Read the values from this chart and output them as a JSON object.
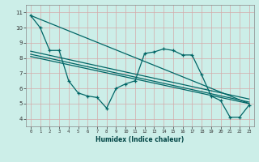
{
  "xlabel": "Humidex (Indice chaleur)",
  "background_color": "#cceee8",
  "grid_color": "#d4aaaa",
  "line_color": "#006666",
  "xlim": [
    -0.5,
    23.5
  ],
  "ylim": [
    3.5,
    11.5
  ],
  "xticks": [
    0,
    1,
    2,
    3,
    4,
    5,
    6,
    7,
    8,
    9,
    10,
    11,
    12,
    13,
    14,
    15,
    16,
    17,
    18,
    19,
    20,
    21,
    22,
    23
  ],
  "yticks": [
    4,
    5,
    6,
    7,
    8,
    9,
    10,
    11
  ],
  "data_x": [
    0,
    1,
    2,
    3,
    4,
    5,
    6,
    7,
    8,
    9,
    10,
    11,
    12,
    13,
    14,
    15,
    16,
    17,
    18,
    19,
    20,
    21,
    22,
    23
  ],
  "data_y": [
    10.8,
    10.0,
    8.5,
    8.5,
    6.5,
    5.7,
    5.5,
    5.4,
    4.7,
    6.0,
    6.3,
    6.5,
    8.3,
    8.4,
    8.6,
    8.5,
    8.2,
    8.2,
    6.9,
    5.5,
    5.2,
    4.1,
    4.1,
    4.9
  ],
  "trend1_x": [
    0,
    23
  ],
  "trend1_y": [
    10.8,
    5.0
  ],
  "trend2_x": [
    0,
    23
  ],
  "trend2_y": [
    8.45,
    5.3
  ],
  "trend3_x": [
    0,
    23
  ],
  "trend3_y": [
    8.25,
    5.1
  ],
  "trend4_x": [
    0,
    23
  ],
  "trend4_y": [
    8.1,
    5.0
  ]
}
